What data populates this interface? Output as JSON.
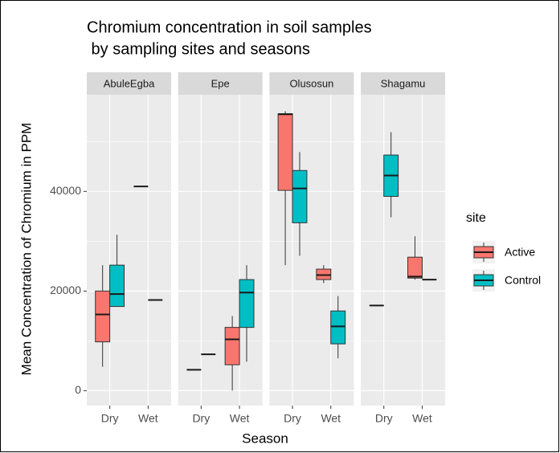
{
  "chart_data": {
    "type": "boxplot",
    "title": [
      "Chromium concentration in soil samples",
      " by sampling sites and seasons"
    ],
    "x_label": "Season",
    "y_label": "Mean Concentration of Chromium in PPM",
    "categories": [
      "Dry",
      "Wet"
    ],
    "ylim": [
      -3000,
      59400
    ],
    "yticks": [
      0,
      20000,
      40000
    ],
    "grid": true,
    "legend_title": "site",
    "legend_position": "right",
    "series": [
      {
        "name": "Active",
        "color": "#F8766D"
      },
      {
        "name": "Control",
        "color": "#00BFC4"
      }
    ],
    "facets": [
      {
        "name": "AbuleEgba",
        "boxes": [
          [
            {
              "min": 4800,
              "q1": 9800,
              "median": 15300,
              "q3": 20000,
              "max": 25200
            },
            {
              "min": 16900,
              "q1": 16900,
              "median": 19400,
              "q3": 25200,
              "max": 31300
            }
          ],
          [
            {
              "min": 41000,
              "q1": 41000,
              "median": 41000,
              "q3": 41000,
              "max": 41000
            },
            {
              "min": 18200,
              "q1": 18200,
              "median": 18200,
              "q3": 18200,
              "max": 18200
            }
          ]
        ]
      },
      {
        "name": "Epe",
        "boxes": [
          [
            {
              "min": 4200,
              "q1": 4200,
              "median": 4200,
              "q3": 4200,
              "max": 4200
            },
            {
              "min": 7300,
              "q1": 7300,
              "median": 7300,
              "q3": 7300,
              "max": 7300
            }
          ],
          [
            {
              "min": 0,
              "q1": 5200,
              "median": 10300,
              "q3": 12700,
              "max": 15000
            },
            {
              "min": 5800,
              "q1": 12700,
              "median": 19700,
              "q3": 22300,
              "max": 25200
            }
          ]
        ]
      },
      {
        "name": "Olusosun",
        "boxes": [
          [
            {
              "min": 25200,
              "q1": 40200,
              "median": 55500,
              "q3": 55600,
              "max": 56100
            },
            {
              "min": 27100,
              "q1": 33700,
              "median": 40600,
              "q3": 44200,
              "max": 47900
            }
          ],
          [
            {
              "min": 21600,
              "q1": 22300,
              "median": 23200,
              "q3": 24400,
              "max": 25200
            },
            {
              "min": 6500,
              "q1": 9400,
              "median": 12900,
              "q3": 16000,
              "max": 19000
            }
          ]
        ]
      },
      {
        "name": "Shagamu",
        "boxes": [
          [
            {
              "min": 17100,
              "q1": 17100,
              "median": 17100,
              "q3": 17100,
              "max": 17100
            },
            {
              "min": 34800,
              "q1": 39000,
              "median": 43200,
              "q3": 47300,
              "max": 51900
            }
          ],
          [
            {
              "min": 22300,
              "q1": 22600,
              "median": 22900,
              "q3": 26800,
              "max": 31000
            },
            {
              "min": 22300,
              "q1": 22300,
              "median": 22300,
              "q3": 22300,
              "max": 22300
            }
          ]
        ]
      }
    ]
  }
}
